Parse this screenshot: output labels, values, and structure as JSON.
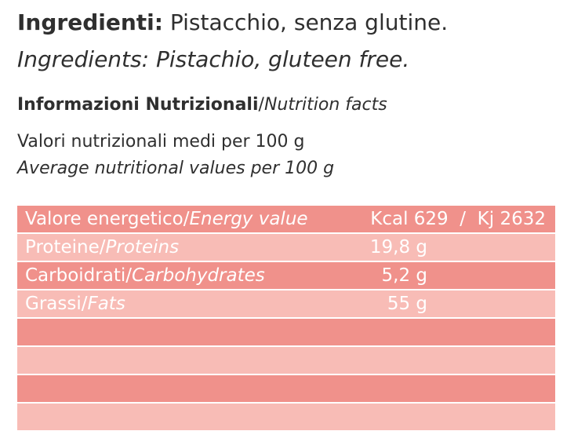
{
  "ingredients": {
    "label_it": "Ingredienti:",
    "text_it": " Pistacchio, senza glutine.",
    "text_en": "Ingredients: Pistachio, gluteen free."
  },
  "nutrition": {
    "title_it": "Informazioni Nutrizionali",
    "title_sep": "/",
    "title_en": "Nutrition facts",
    "avg_it": "Valori nutrizionali medi per 100 g",
    "avg_en": "Average nutritional values per 100 g"
  },
  "table": {
    "rows": [
      {
        "label_it": "Valore energetico/",
        "label_en": "Energy value",
        "value": "Kcal 629  /  Kj 2632"
      },
      {
        "label_it": "Proteine/",
        "label_en": "Proteins",
        "value": "19,8 g"
      },
      {
        "label_it": "Carboidrati/",
        "label_en": "Carbohydrates",
        "value": "5,2 g"
      },
      {
        "label_it": "Grassi/",
        "label_en": "Fats",
        "value": "55 g"
      }
    ],
    "colors": {
      "dark": "#f0918b",
      "light": "#f8bcb6",
      "text": "#ffffff"
    }
  }
}
